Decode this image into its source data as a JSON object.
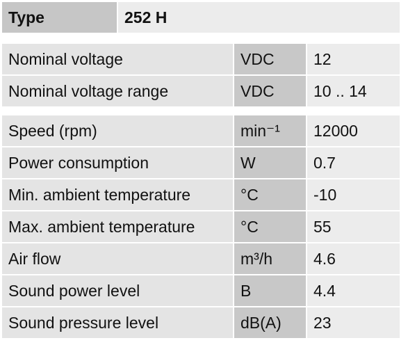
{
  "header": {
    "label": "Type",
    "value": "252 H"
  },
  "groups": [
    {
      "rows": [
        [
          "Nominal voltage",
          "VDC",
          "12"
        ],
        [
          "Nominal voltage range",
          "VDC",
          "10 .. 14"
        ]
      ]
    },
    {
      "rows": [
        [
          "Speed (rpm)",
          "min⁻¹",
          "12000"
        ],
        [
          "Power consumption",
          "W",
          "0.7"
        ],
        [
          "Min. ambient temperature",
          "°C",
          "-10"
        ],
        [
          "Max. ambient temperature",
          "°C",
          "55"
        ],
        [
          "Air flow",
          "m³/h",
          "4.6"
        ],
        [
          "Sound power level",
          "B",
          "4.4"
        ],
        [
          "Sound pressure level",
          "dB(A)",
          "23"
        ]
      ]
    }
  ]
}
